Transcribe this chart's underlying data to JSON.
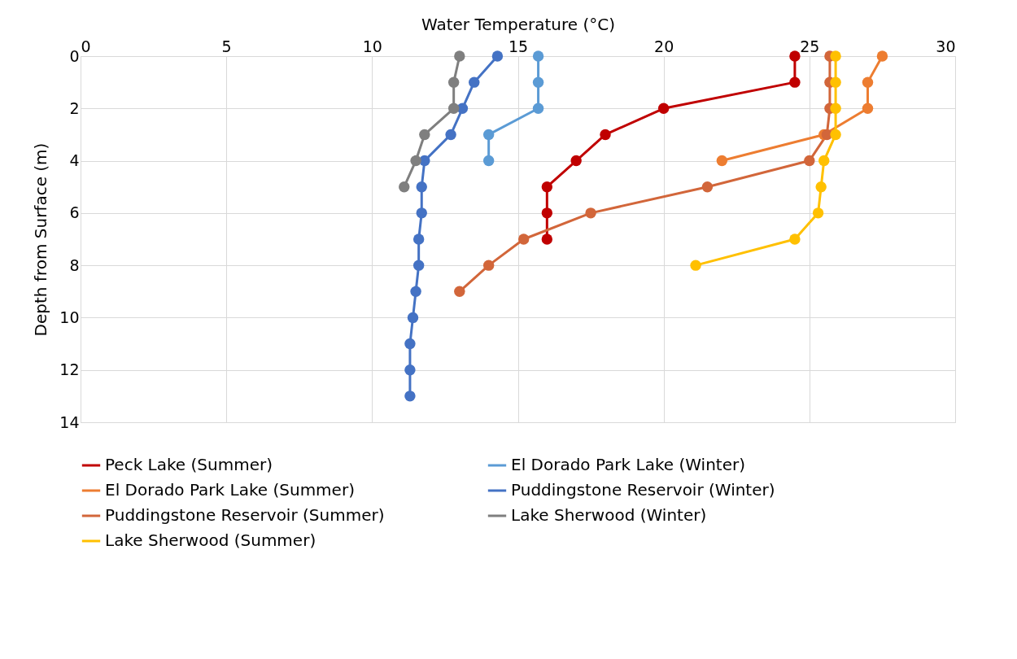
{
  "chart_data": {
    "type": "line",
    "xlabel": "Water Temperature (°C)",
    "ylabel": "Depth from Surface (m)",
    "xlim": [
      0,
      30
    ],
    "xticks": [
      0,
      5,
      10,
      15,
      20,
      25,
      30
    ],
    "ylim": [
      14,
      0
    ],
    "yticks": [
      0,
      2,
      4,
      6,
      8,
      10,
      12,
      14
    ],
    "grid": true,
    "legend": "bottom",
    "marker": "circle",
    "line_style": "solid",
    "series": [
      {
        "name": "Peck Lake (Summer)",
        "color": "#c00000",
        "x": [
          24.5,
          24.5,
          20.0,
          18.0,
          17.0,
          16.0,
          16.0,
          16.0
        ],
        "values": [
          0,
          1,
          2,
          3,
          4,
          5,
          6,
          7
        ]
      },
      {
        "name": "El Dorado Park Lake (Winter)",
        "color": "#5b9bd5",
        "x": [
          15.7,
          15.7,
          15.7,
          14.0,
          14.0
        ],
        "values": [
          0,
          1,
          2,
          3,
          4
        ]
      },
      {
        "name": "El Dorado Park Lake (Summer)",
        "color": "#ed7d31",
        "x": [
          27.5,
          27.0,
          27.0,
          25.5,
          22.0
        ],
        "values": [
          0,
          1,
          2,
          3,
          4
        ]
      },
      {
        "name": "Puddingstone Reservoir (Winter)",
        "color": "#4472c4",
        "x": [
          14.3,
          13.5,
          13.1,
          12.7,
          11.8,
          11.7,
          11.7,
          11.6,
          11.6,
          11.5,
          11.4,
          11.3,
          11.3,
          11.3
        ],
        "values": [
          0,
          1,
          2,
          3,
          4,
          5,
          6,
          7,
          8,
          9,
          10,
          11,
          12,
          13
        ]
      },
      {
        "name": "Puddingstone Reservoir (Summer)",
        "color": "#d2663a",
        "x": [
          25.7,
          25.7,
          25.7,
          25.6,
          25.0,
          21.5,
          17.5,
          15.2,
          14.0,
          13.0
        ],
        "values": [
          0,
          1,
          2,
          3,
          4,
          5,
          6,
          7,
          8,
          9
        ]
      },
      {
        "name": "Lake Sherwood (Winter)",
        "color": "#7f7f7f",
        "x": [
          13.0,
          12.8,
          12.8,
          11.8,
          11.5,
          11.1
        ],
        "values": [
          0,
          1,
          2,
          3,
          4,
          5
        ]
      },
      {
        "name": "Lake Sherwood (Summer)",
        "color": "#ffc000",
        "x": [
          25.9,
          25.9,
          25.9,
          25.9,
          25.5,
          25.4,
          25.3,
          24.5,
          21.1
        ],
        "values": [
          0,
          1,
          2,
          3,
          4,
          5,
          6,
          7,
          8
        ]
      }
    ]
  }
}
